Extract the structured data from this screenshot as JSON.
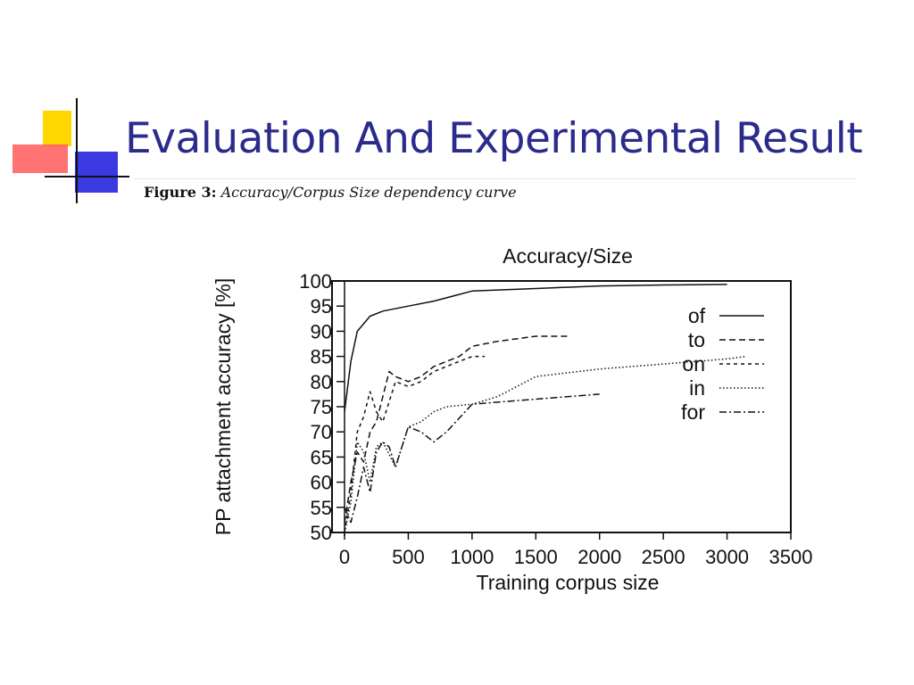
{
  "slide": {
    "title": "Evaluation And Experimental Result",
    "caption_label": "Figure 3:",
    "caption_text": "Accuracy/Corpus Size dependency curve",
    "accent_colors": {
      "title": "#2b2b8c",
      "yellow": "#ffd700",
      "red": "#ff4040",
      "blue": "#3a3ae0"
    }
  },
  "chart_data": {
    "type": "line",
    "title": "Accuracy/Size",
    "xlabel": "Training corpus size",
    "ylabel": "PP attachment accuracy [%]",
    "xlim": [
      0,
      3500
    ],
    "ylim": [
      50,
      100
    ],
    "xticks": [
      0,
      500,
      1000,
      1500,
      2000,
      2500,
      3000,
      3500
    ],
    "yticks": [
      50,
      55,
      60,
      65,
      70,
      75,
      80,
      85,
      90,
      95,
      100
    ],
    "grid": false,
    "legend": "top-right",
    "series": [
      {
        "name": "of",
        "dash": "solid",
        "x": [
          0,
          50,
          100,
          200,
          300,
          500,
          700,
          1000,
          1500,
          2000,
          2500,
          3000
        ],
        "y": [
          74,
          84,
          90,
          93,
          94,
          95,
          96,
          98,
          98.5,
          99,
          99.2,
          99.3
        ]
      },
      {
        "name": "to",
        "dash": "dashed",
        "x": [
          0,
          50,
          100,
          150,
          200,
          250,
          300,
          350,
          400,
          500,
          600,
          700,
          800,
          900,
          1000,
          1200,
          1500,
          1750
        ],
        "y": [
          52,
          60,
          66,
          64,
          70,
          72,
          77,
          82,
          81,
          80,
          81,
          83,
          84,
          85,
          87,
          88,
          89,
          89
        ]
      },
      {
        "name": "on",
        "dash": "short-dashed",
        "x": [
          0,
          50,
          100,
          150,
          200,
          250,
          300,
          350,
          400,
          500,
          600,
          700,
          800,
          900,
          1000,
          1100
        ],
        "y": [
          50,
          58,
          70,
          73,
          78,
          74,
          72,
          76,
          80,
          79,
          80,
          82,
          83,
          84,
          85,
          85
        ]
      },
      {
        "name": "in",
        "dash": "dotted",
        "x": [
          0,
          50,
          100,
          150,
          200,
          250,
          300,
          400,
          500,
          600,
          700,
          800,
          1000,
          1200,
          1500,
          2000,
          2500,
          3000,
          3150
        ],
        "y": [
          50,
          56,
          68,
          66,
          60,
          67,
          68,
          63,
          71,
          72,
          74,
          75,
          75.5,
          77,
          81,
          82.5,
          83.5,
          84.5,
          85
        ]
      },
      {
        "name": "for",
        "dash": "dash-dot",
        "x": [
          0,
          50,
          100,
          150,
          200,
          250,
          300,
          350,
          400,
          500,
          600,
          700,
          800,
          1000,
          1500,
          2000
        ],
        "y": [
          55,
          52,
          57,
          63,
          58,
          66,
          68,
          67,
          63,
          71,
          70,
          68,
          70,
          75.5,
          76.5,
          77.5
        ]
      }
    ]
  }
}
